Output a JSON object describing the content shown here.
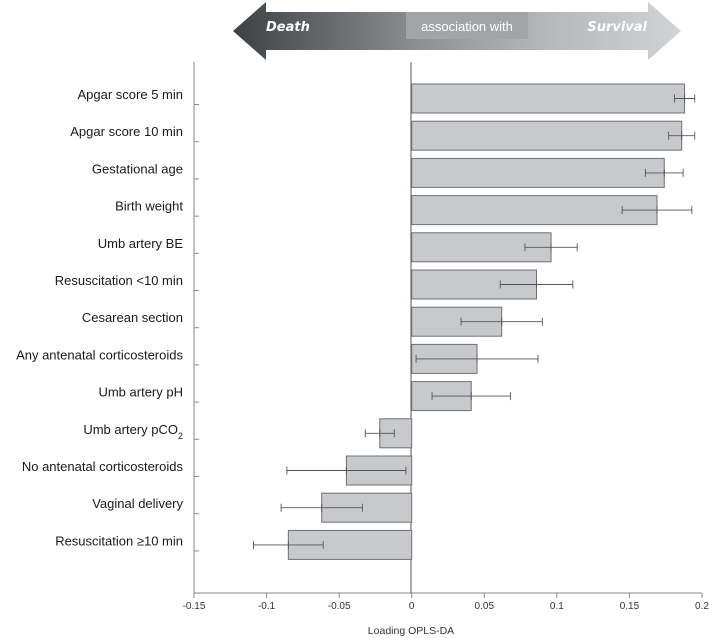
{
  "header": {
    "left_label": "Death",
    "middle_label": "association with",
    "right_label": "Survival"
  },
  "chart_data": {
    "type": "bar",
    "orientation": "horizontal",
    "xlabel": "Loading OPLS-DA",
    "xlim": [
      -0.15,
      0.2
    ],
    "xticks": [
      "-0.15",
      "-0.1",
      "-0.05",
      "0",
      "0.05",
      "0.1",
      "0.15",
      "0.2"
    ],
    "bar_color": "#c8c9cd",
    "categories": [
      "Apgar score 5 min",
      "Apgar score 10 min",
      "Gestational age",
      "Birth weight",
      "Umb artery BE",
      "Resuscitation <10 min",
      "Cesarean section",
      "Any antenatal corticosteroids",
      "Umb artery pH",
      "Umb artery pCO2",
      "No antenatal corticosteroids",
      "Vaginal delivery",
      "Resuscitation ≥10 min"
    ],
    "values": [
      0.188,
      0.186,
      0.174,
      0.169,
      0.096,
      0.086,
      0.062,
      0.045,
      0.041,
      -0.022,
      -0.045,
      -0.062,
      -0.085
    ],
    "error": [
      0.007,
      0.009,
      0.013,
      0.024,
      0.018,
      0.025,
      0.028,
      0.042,
      0.027,
      0.01,
      0.041,
      0.028,
      0.024
    ]
  }
}
